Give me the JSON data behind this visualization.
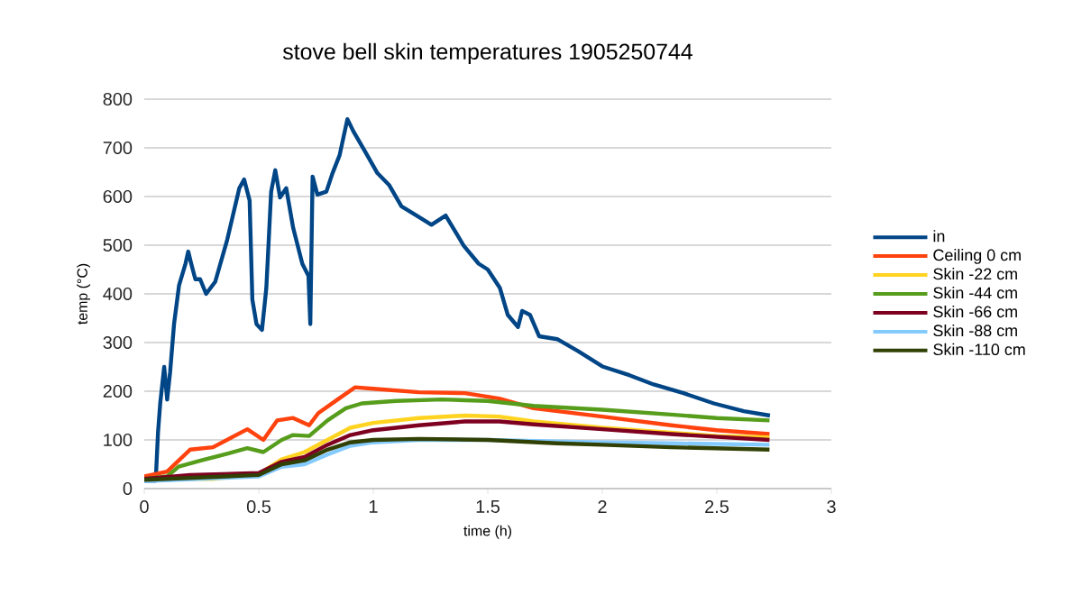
{
  "chart_data": {
    "type": "line",
    "title": "stove bell skin temperatures 1905250744",
    "xlabel": "time (h)",
    "ylabel": "temp (°C)",
    "xlim": [
      0,
      3
    ],
    "xticks": [
      0,
      0.5,
      1,
      1.5,
      2,
      2.5,
      3
    ],
    "ylim": [
      0,
      800
    ],
    "yticks": [
      0,
      100,
      200,
      300,
      400,
      500,
      600,
      700,
      800
    ],
    "grid": "y",
    "legend": "right",
    "line_style": "solid",
    "marker": "none",
    "series": [
      {
        "name": "in",
        "color": "#004586",
        "x": [
          0,
          0.05,
          0.06,
          0.07,
          0.087,
          0.1,
          0.113,
          0.13,
          0.152,
          0.18,
          0.192,
          0.205,
          0.223,
          0.244,
          0.27,
          0.31,
          0.362,
          0.415,
          0.436,
          0.46,
          0.472,
          0.49,
          0.514,
          0.533,
          0.554,
          0.572,
          0.593,
          0.62,
          0.65,
          0.69,
          0.717,
          0.725,
          0.735,
          0.756,
          0.795,
          0.822,
          0.853,
          0.887,
          0.913,
          0.966,
          1.018,
          1.07,
          1.123,
          1.189,
          1.254,
          1.316,
          1.395,
          1.46,
          1.5,
          1.553,
          1.587,
          1.632,
          1.65,
          1.684,
          1.724,
          1.803,
          1.895,
          2.0,
          2.118,
          2.224,
          2.355,
          2.487,
          2.618,
          2.732
        ],
        "values": [
          16,
          16,
          115,
          177,
          250,
          183,
          240,
          338,
          418,
          462,
          487,
          462,
          430,
          430,
          400,
          425,
          511,
          617,
          635,
          592,
          388,
          338,
          326,
          412,
          610,
          654,
          598,
          617,
          536,
          462,
          437,
          338,
          641,
          604,
          610,
          648,
          685,
          759,
          734,
          691,
          648,
          623,
          580,
          561,
          542,
          561,
          499,
          462,
          450,
          412,
          357,
          332,
          365,
          357,
          313,
          307,
          282,
          251,
          233,
          214,
          196,
          175,
          159,
          150
        ]
      },
      {
        "name": "Ceiling 0 cm",
        "color": "#ff420e",
        "x": [
          0,
          0.1,
          0.2,
          0.3,
          0.45,
          0.52,
          0.58,
          0.65,
          0.72,
          0.76,
          0.85,
          0.92,
          1.0,
          1.2,
          1.4,
          1.55,
          1.7,
          2.0,
          2.3,
          2.5,
          2.73
        ],
        "values": [
          25,
          35,
          80,
          85,
          122,
          100,
          140,
          145,
          130,
          155,
          185,
          208,
          205,
          198,
          196,
          185,
          165,
          148,
          130,
          120,
          112
        ]
      },
      {
        "name": "Skin -22 cm",
        "color": "#ffd320",
        "x": [
          0,
          0.3,
          0.5,
          0.6,
          0.7,
          0.8,
          0.9,
          1.0,
          1.2,
          1.4,
          1.55,
          1.7,
          2.0,
          2.3,
          2.5,
          2.73
        ],
        "values": [
          20,
          20,
          30,
          60,
          75,
          100,
          125,
          135,
          145,
          150,
          148,
          138,
          125,
          115,
          108,
          105
        ]
      },
      {
        "name": "Skin -44 cm",
        "color": "#579d1c",
        "x": [
          0,
          0.1,
          0.15,
          0.25,
          0.35,
          0.45,
          0.52,
          0.6,
          0.65,
          0.72,
          0.8,
          0.88,
          0.95,
          1.1,
          1.3,
          1.5,
          1.7,
          2.0,
          2.3,
          2.5,
          2.73
        ],
        "values": [
          20,
          25,
          45,
          58,
          70,
          83,
          75,
          100,
          110,
          108,
          140,
          165,
          175,
          180,
          183,
          180,
          170,
          162,
          152,
          145,
          140
        ]
      },
      {
        "name": "Skin -66 cm",
        "color": "#7e0021",
        "x": [
          0,
          0.2,
          0.5,
          0.6,
          0.7,
          0.8,
          0.9,
          1.0,
          1.2,
          1.4,
          1.55,
          1.7,
          2.0,
          2.3,
          2.73
        ],
        "values": [
          20,
          28,
          32,
          55,
          65,
          90,
          110,
          120,
          130,
          138,
          138,
          132,
          122,
          112,
          100
        ]
      },
      {
        "name": "Skin -88 cm",
        "color": "#83caff",
        "x": [
          0,
          0.5,
          0.6,
          0.7,
          0.8,
          0.9,
          1.0,
          1.2,
          1.5,
          1.8,
          2.0,
          2.3,
          2.73
        ],
        "values": [
          15,
          25,
          45,
          50,
          70,
          88,
          95,
          100,
          100,
          97,
          95,
          93,
          90
        ]
      },
      {
        "name": "Skin -110 cm",
        "color": "#314004",
        "x": [
          0,
          0.5,
          0.6,
          0.7,
          0.8,
          0.9,
          1.0,
          1.2,
          1.5,
          1.8,
          2.0,
          2.3,
          2.73
        ],
        "values": [
          18,
          28,
          50,
          58,
          80,
          95,
          100,
          102,
          100,
          93,
          90,
          85,
          80
        ]
      }
    ]
  }
}
